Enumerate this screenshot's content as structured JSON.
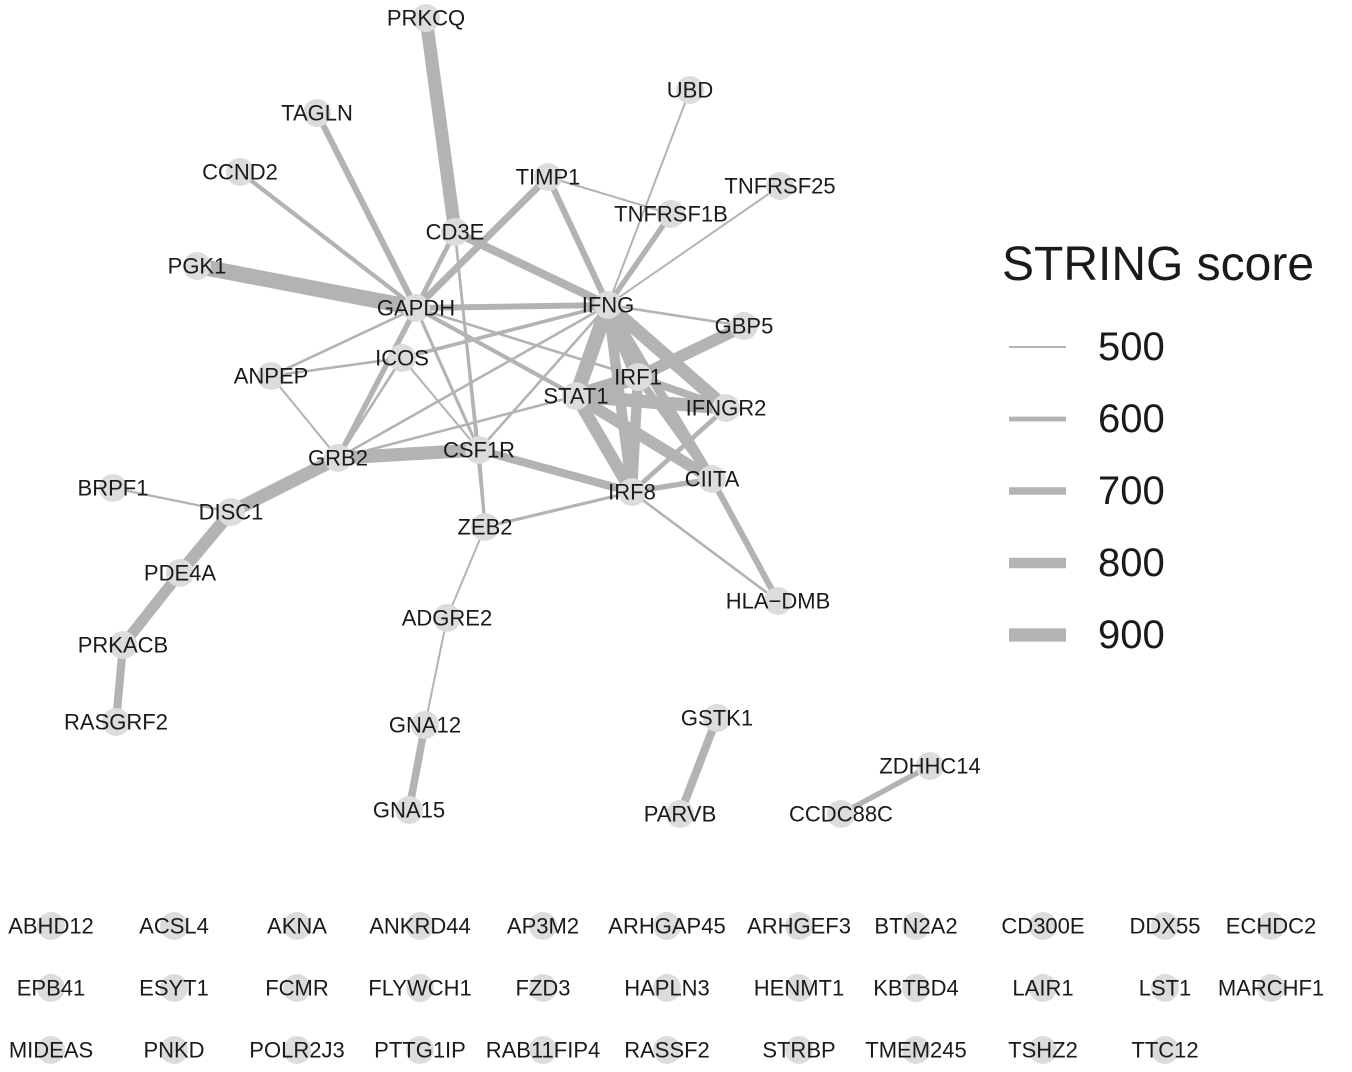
{
  "legend": {
    "title": "STRING score",
    "entries": [
      {
        "label": "500",
        "score": 500
      },
      {
        "label": "600",
        "score": 600
      },
      {
        "label": "700",
        "score": 700
      },
      {
        "label": "800",
        "score": 800
      },
      {
        "label": "900",
        "score": 900
      }
    ]
  },
  "colors": {
    "edge": "#b3b3b3",
    "node": "#dcdcdc",
    "text": "#1a1a1a"
  },
  "nodes": [
    {
      "id": "PRKCQ",
      "label": "PRKCQ"
    },
    {
      "id": "UBD",
      "label": "UBD"
    },
    {
      "id": "TAGLN",
      "label": "TAGLN"
    },
    {
      "id": "CCND2",
      "label": "CCND2"
    },
    {
      "id": "TIMP1",
      "label": "TIMP1"
    },
    {
      "id": "TNFRSF25",
      "label": "TNFRSF25"
    },
    {
      "id": "TNFRSF1B",
      "label": "TNFRSF1B"
    },
    {
      "id": "CD3E",
      "label": "CD3E"
    },
    {
      "id": "PGK1",
      "label": "PGK1"
    },
    {
      "id": "GAPDH",
      "label": "GAPDH"
    },
    {
      "id": "IFNG",
      "label": "IFNG"
    },
    {
      "id": "GBP5",
      "label": "GBP5"
    },
    {
      "id": "ICOS",
      "label": "ICOS"
    },
    {
      "id": "ANPEP",
      "label": "ANPEP"
    },
    {
      "id": "IRF1",
      "label": "IRF1"
    },
    {
      "id": "STAT1",
      "label": "STAT1"
    },
    {
      "id": "IFNGR2",
      "label": "IFNGR2"
    },
    {
      "id": "GRB2",
      "label": "GRB2"
    },
    {
      "id": "CSF1R",
      "label": "CSF1R"
    },
    {
      "id": "CIITA",
      "label": "CIITA"
    },
    {
      "id": "IRF8",
      "label": "IRF8"
    },
    {
      "id": "BRPF1",
      "label": "BRPF1"
    },
    {
      "id": "DISC1",
      "label": "DISC1"
    },
    {
      "id": "ZEB2",
      "label": "ZEB2"
    },
    {
      "id": "PDE4A",
      "label": "PDE4A"
    },
    {
      "id": "HLA-DMB",
      "label": "HLA−DMB"
    },
    {
      "id": "ADGRE2",
      "label": "ADGRE2"
    },
    {
      "id": "PRKACB",
      "label": "PRKACB"
    },
    {
      "id": "RASGRF2",
      "label": "RASGRF2"
    },
    {
      "id": "GSTK1",
      "label": "GSTK1"
    },
    {
      "id": "GNA12",
      "label": "GNA12"
    },
    {
      "id": "ZDHHC14",
      "label": "ZDHHC14"
    },
    {
      "id": "GNA15",
      "label": "GNA15"
    },
    {
      "id": "PARVB",
      "label": "PARVB"
    },
    {
      "id": "CCDC88C",
      "label": "CCDC88C"
    },
    {
      "id": "ABHD12",
      "label": "ABHD12"
    },
    {
      "id": "ACSL4",
      "label": "ACSL4"
    },
    {
      "id": "AKNA",
      "label": "AKNA"
    },
    {
      "id": "ANKRD44",
      "label": "ANKRD44"
    },
    {
      "id": "AP3M2",
      "label": "AP3M2"
    },
    {
      "id": "ARHGAP45",
      "label": "ARHGAP45"
    },
    {
      "id": "ARHGEF3",
      "label": "ARHGEF3"
    },
    {
      "id": "BTN2A2",
      "label": "BTN2A2"
    },
    {
      "id": "CD300E",
      "label": "CD300E"
    },
    {
      "id": "DDX55",
      "label": "DDX55"
    },
    {
      "id": "ECHDC2",
      "label": "ECHDC2"
    },
    {
      "id": "EPB41",
      "label": "EPB41"
    },
    {
      "id": "ESYT1",
      "label": "ESYT1"
    },
    {
      "id": "FCMR",
      "label": "FCMR"
    },
    {
      "id": "FLYWCH1",
      "label": "FLYWCH1"
    },
    {
      "id": "FZD3",
      "label": "FZD3"
    },
    {
      "id": "HAPLN3",
      "label": "HAPLN3"
    },
    {
      "id": "HENMT1",
      "label": "HENMT1"
    },
    {
      "id": "KBTBD4",
      "label": "KBTBD4"
    },
    {
      "id": "LAIR1",
      "label": "LAIR1"
    },
    {
      "id": "LST1",
      "label": "LST1"
    },
    {
      "id": "MARCHF1",
      "label": "MARCHF1"
    },
    {
      "id": "MIDEAS",
      "label": "MIDEAS"
    },
    {
      "id": "PNKD",
      "label": "PNKD"
    },
    {
      "id": "POLR2J3",
      "label": "POLR2J3"
    },
    {
      "id": "PTTG1IP",
      "label": "PTTG1IP"
    },
    {
      "id": "RAB11FIP4",
      "label": "RAB11FIP4"
    },
    {
      "id": "RASSF2",
      "label": "RASSF2"
    },
    {
      "id": "STRBP",
      "label": "STRBP"
    },
    {
      "id": "TMEM245",
      "label": "TMEM245"
    },
    {
      "id": "TSHZ2",
      "label": "TSHZ2"
    },
    {
      "id": "TTC12",
      "label": "TTC12"
    }
  ],
  "edges": [
    {
      "source": "PRKCQ",
      "target": "CD3E",
      "score": 900
    },
    {
      "source": "PGK1",
      "target": "GAPDH",
      "score": 990
    },
    {
      "source": "TAGLN",
      "target": "GAPDH",
      "score": 650
    },
    {
      "source": "CCND2",
      "target": "GAPDH",
      "score": 580
    },
    {
      "source": "CD3E",
      "target": "GAPDH",
      "score": 600
    },
    {
      "source": "CD3E",
      "target": "IFNG",
      "score": 720
    },
    {
      "source": "CD3E",
      "target": "CSF1R",
      "score": 500
    },
    {
      "source": "CD3E",
      "target": "ZEB2",
      "score": 520
    },
    {
      "source": "TIMP1",
      "target": "GAPDH",
      "score": 680
    },
    {
      "source": "TIMP1",
      "target": "IFNG",
      "score": 650
    },
    {
      "source": "TIMP1",
      "target": "TNFRSF1B",
      "score": 500
    },
    {
      "source": "UBD",
      "target": "IFNG",
      "score": 500
    },
    {
      "source": "TNFRSF25",
      "target": "IFNG",
      "score": 500
    },
    {
      "source": "TNFRSF1B",
      "target": "IFNG",
      "score": 620
    },
    {
      "source": "GAPDH",
      "target": "IFNG",
      "score": 640
    },
    {
      "source": "GAPDH",
      "target": "STAT1",
      "score": 580
    },
    {
      "source": "GAPDH",
      "target": "GRB2",
      "score": 620
    },
    {
      "source": "GAPDH",
      "target": "CSF1R",
      "score": 540
    },
    {
      "source": "GAPDH",
      "target": "IRF1",
      "score": 520
    },
    {
      "source": "ANPEP",
      "target": "GAPDH",
      "score": 520
    },
    {
      "source": "ANPEP",
      "target": "ICOS",
      "score": 520
    },
    {
      "source": "ANPEP",
      "target": "GRB2",
      "score": 500
    },
    {
      "source": "ICOS",
      "target": "IFNG",
      "score": 560
    },
    {
      "source": "ICOS",
      "target": "GRB2",
      "score": 520
    },
    {
      "source": "ICOS",
      "target": "CSF1R",
      "score": 500
    },
    {
      "source": "IFNG",
      "target": "GBP5",
      "score": 520
    },
    {
      "source": "IFNG",
      "target": "STAT1",
      "score": 950
    },
    {
      "source": "IFNG",
      "target": "IRF1",
      "score": 950
    },
    {
      "source": "IFNG",
      "target": "IFNGR2",
      "score": 900
    },
    {
      "source": "IFNG",
      "target": "IRF8",
      "score": 800
    },
    {
      "source": "IFNG",
      "target": "CIITA",
      "score": 750
    },
    {
      "source": "IFNG",
      "target": "GRB2",
      "score": 520
    },
    {
      "source": "IFNG",
      "target": "CSF1R",
      "score": 520
    },
    {
      "source": "IRF1",
      "target": "GBP5",
      "score": 850
    },
    {
      "source": "STAT1",
      "target": "IRF1",
      "score": 950
    },
    {
      "source": "STAT1",
      "target": "IFNGR2",
      "score": 900
    },
    {
      "source": "STAT1",
      "target": "IRF8",
      "score": 880
    },
    {
      "source": "STAT1",
      "target": "CIITA",
      "score": 850
    },
    {
      "source": "STAT1",
      "target": "GRB2",
      "score": 520
    },
    {
      "source": "IRF1",
      "target": "IRF8",
      "score": 800
    },
    {
      "source": "IRF1",
      "target": "CIITA",
      "score": 700
    },
    {
      "source": "IRF1",
      "target": "IFNGR2",
      "score": 700
    },
    {
      "source": "IFNGR2",
      "target": "IRF8",
      "score": 600
    },
    {
      "source": "IRF8",
      "target": "CIITA",
      "score": 620
    },
    {
      "source": "CIITA",
      "target": "HLA-DMB",
      "score": 650
    },
    {
      "source": "IRF8",
      "target": "HLA-DMB",
      "score": 520
    },
    {
      "source": "GRB2",
      "target": "CSF1R",
      "score": 900
    },
    {
      "source": "CSF1R",
      "target": "IRF8",
      "score": 720
    },
    {
      "source": "CSF1R",
      "target": "ZEB2",
      "score": 540
    },
    {
      "source": "ZEB2",
      "target": "IRF8",
      "score": 540
    },
    {
      "source": "ZEB2",
      "target": "ADGRE2",
      "score": 500
    },
    {
      "source": "GRB2",
      "target": "DISC1",
      "score": 900
    },
    {
      "source": "BRPF1",
      "target": "DISC1",
      "score": 510
    },
    {
      "source": "DISC1",
      "target": "PDE4A",
      "score": 880
    },
    {
      "source": "PDE4A",
      "target": "PRKACB",
      "score": 820
    },
    {
      "source": "PRKACB",
      "target": "RASGRF2",
      "score": 720
    },
    {
      "source": "ADGRE2",
      "target": "GNA12",
      "score": 500
    },
    {
      "source": "GNA12",
      "target": "GNA15",
      "score": 700
    },
    {
      "source": "GSTK1",
      "target": "PARVB",
      "score": 720
    },
    {
      "source": "ZDHHC14",
      "target": "CCDC88C",
      "score": 620
    }
  ]
}
